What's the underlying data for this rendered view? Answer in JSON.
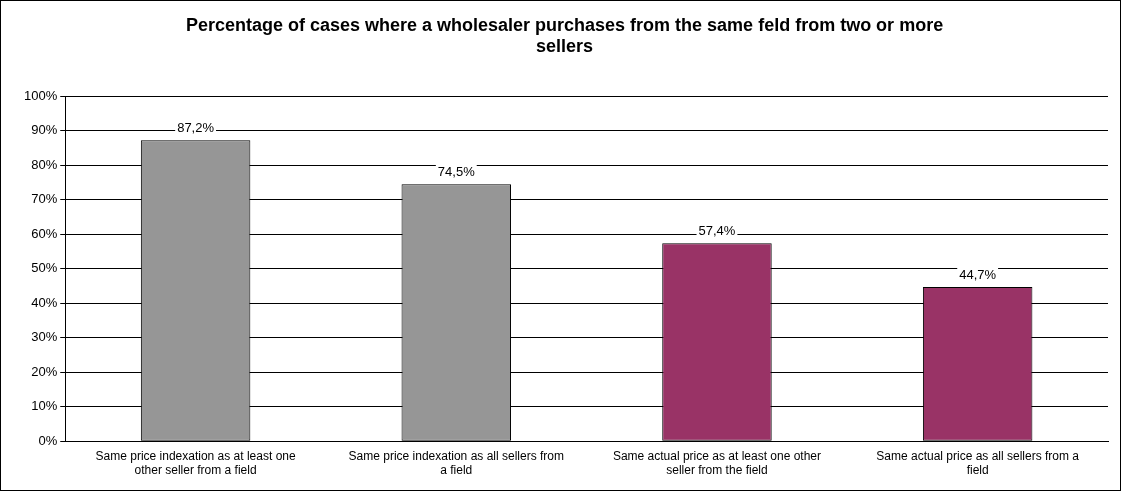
{
  "chart_data": {
    "type": "bar",
    "title": "Percentage of cases where a wholesaler purchases from the same feld from two or more sellers",
    "categories": [
      "Same price indexation as at least one other seller from a field",
      "Same price indexation as all sellers from a field",
      "Same actual price as at least one other seller from the field",
      "Same actual price as all sellers from a field"
    ],
    "values": [
      87.2,
      74.5,
      57.4,
      44.7
    ],
    "colors": [
      "#969696",
      "#969696",
      "#993366",
      "#993366"
    ],
    "value_labels": [
      "87,2%",
      "74,5%",
      "57,4%",
      "44,7%"
    ],
    "ylim": [
      0,
      100
    ],
    "yticks": [
      {
        "value": 0,
        "label": "0%"
      },
      {
        "value": 10,
        "label": "10%"
      },
      {
        "value": 20,
        "label": "20%"
      },
      {
        "value": 30,
        "label": "30%"
      },
      {
        "value": 40,
        "label": "40%"
      },
      {
        "value": 50,
        "label": "50%"
      },
      {
        "value": 60,
        "label": "60%"
      },
      {
        "value": 70,
        "label": "70%"
      },
      {
        "value": 80,
        "label": "80%"
      },
      {
        "value": 90,
        "label": "90%"
      },
      {
        "value": 100,
        "label": "100%"
      }
    ],
    "grid": "y",
    "legend": false
  }
}
